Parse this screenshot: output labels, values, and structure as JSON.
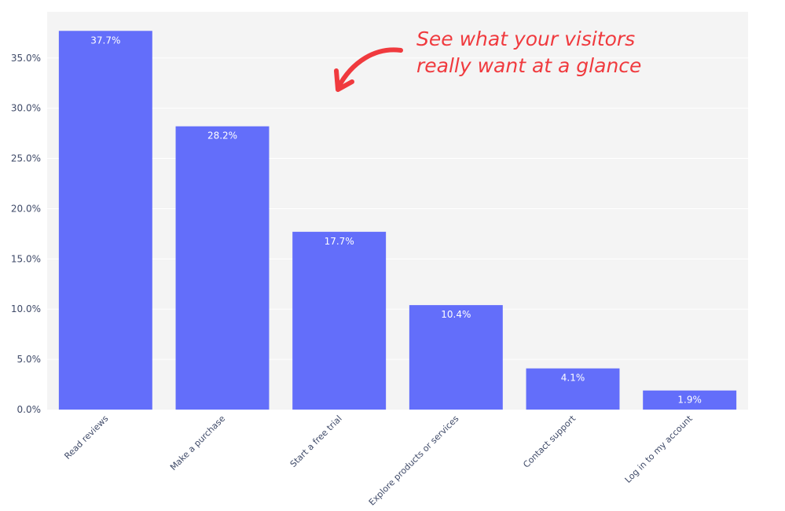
{
  "chart_data": {
    "type": "bar",
    "categories": [
      "Read reviews",
      "Make a purchase",
      "Start a free trial",
      "Explore products or services",
      "Contact support",
      "Log in to my account"
    ],
    "values": [
      37.7,
      28.2,
      17.7,
      10.4,
      4.1,
      1.9
    ],
    "value_labels": [
      "37.7%",
      "28.2%",
      "17.7%",
      "10.4%",
      "4.1%",
      "1.9%"
    ],
    "title": "",
    "xlabel": "",
    "ylabel": "",
    "ylim": [
      0,
      39.6
    ],
    "yticks": [
      0,
      5,
      10,
      15,
      20,
      25,
      30,
      35
    ],
    "ytick_labels": [
      "0.0%",
      "5.0%",
      "10.0%",
      "15.0%",
      "20.0%",
      "25.0%",
      "30.0%",
      "35.0%"
    ],
    "grid": true,
    "legend": "none",
    "colors": {
      "bar": "#636efa",
      "plot_background": "#f4f4f4",
      "grid": "#ffffff",
      "annotation": "#f03a3e"
    },
    "annotation": {
      "lines": [
        "See what your visitors",
        "really want at a glance"
      ],
      "icon": "curved-arrow-icon"
    }
  }
}
